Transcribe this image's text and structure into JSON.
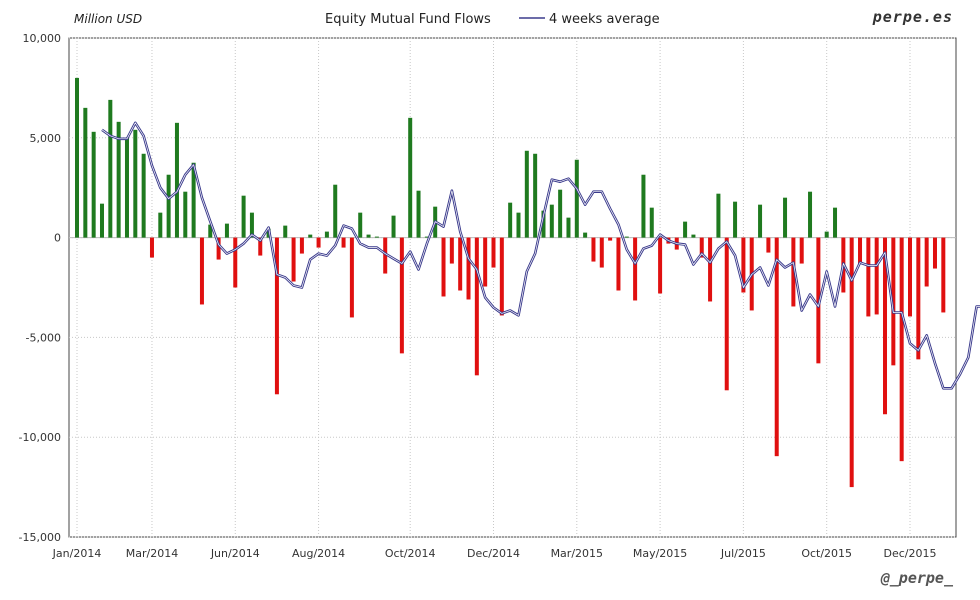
{
  "chart_data": {
    "type": "bar",
    "title": "Equity Mutual Fund Flows",
    "unit_label": "Million USD",
    "brand": "perpe.es",
    "handle": "@_perpe_",
    "ylim": [
      -15000,
      10000
    ],
    "y_ticks": [
      "10,000",
      "5,000",
      "0",
      "-5,000",
      "-10,000",
      "-15,000"
    ],
    "y_tick_values": [
      10000,
      5000,
      0,
      -5000,
      -10000,
      -15000
    ],
    "x_tick_labels": [
      "Jan/2014",
      "Mar/2014",
      "Jun/2014",
      "Aug/2014",
      "Oct/2014",
      "Dec/2014",
      "Mar/2015",
      "May/2015",
      "Jul/2015",
      "Oct/2015",
      "Dec/2015"
    ],
    "x_tick_weeks": [
      0,
      9,
      19,
      29,
      40,
      50,
      60,
      70,
      80,
      90,
      100
    ],
    "grid": true,
    "colors": {
      "positive": "#1f7a1f",
      "negative": "#e01010",
      "average_line": "#3a3a8c"
    },
    "series": [
      {
        "kind": "bar",
        "values": [
          8000,
          6500,
          5300,
          1700,
          6900,
          5800,
          5000,
          5400,
          4200,
          -1000,
          1250,
          3150,
          5750,
          2300,
          3750,
          -3350,
          650,
          -1100,
          700,
          -2500,
          2100,
          1250,
          -900,
          450,
          -7850,
          600,
          -2200,
          -800,
          150,
          -500,
          300,
          2650,
          -500,
          -4000,
          1250,
          150,
          50,
          -1800,
          1100,
          -5800,
          6000,
          2350,
          50,
          1550,
          -2950,
          -1300,
          -2650,
          -3100,
          -6900,
          -2450,
          -1500,
          -3900,
          1750,
          1250,
          4350,
          4200,
          1350,
          1650,
          2400,
          1000,
          3900,
          250,
          -1200,
          -1500,
          -150,
          -2650,
          50,
          -3150,
          3150,
          1500,
          -2800,
          -300,
          -600,
          800,
          150,
          -1000,
          -3200,
          2200,
          -7650,
          1800,
          -2750,
          -3650,
          1650,
          -750,
          -10950,
          2000,
          -3450,
          -1300,
          2300,
          -6300,
          300,
          1500,
          -2750,
          -12500,
          -1300,
          -3950,
          -3850,
          -8850,
          -6400,
          -11200,
          -3950,
          -6100,
          -2450,
          -1550,
          -3750
        ]
      },
      {
        "kind": "line",
        "name": "4 weeks average",
        "start_week": 3,
        "values": [
          5400,
          5100,
          4950,
          4950,
          5750,
          5100,
          3600,
          2500,
          1950,
          2300,
          3150,
          3650,
          2000,
          800,
          -350,
          -800,
          -600,
          -300,
          150,
          -150,
          500,
          -1850,
          -2000,
          -2400,
          -2500,
          -1100,
          -800,
          -900,
          -400,
          600,
          450,
          -300,
          -500,
          -500,
          -800,
          -1050,
          -1300,
          -700,
          -1600,
          -300,
          800,
          550,
          2350,
          300,
          -1050,
          -1600,
          -3000,
          -3500,
          -3800,
          -3650,
          -3900,
          -1700,
          -800,
          1100,
          2900,
          2800,
          2950,
          2450,
          1650,
          2300,
          2300,
          1450,
          650,
          -600,
          -1300,
          -550,
          -400,
          150,
          -150,
          -300,
          -350,
          -1350,
          -800,
          -1250,
          -550,
          -200,
          -900,
          -2500,
          -1850,
          -1500,
          -2400,
          -1100,
          -1500,
          -1250,
          -3650,
          -2850,
          -3450,
          -1700,
          -3450,
          -1300,
          -2150,
          -1250,
          -1400,
          -1400,
          -750,
          -3750,
          -3750,
          -5300,
          -5650,
          -4900,
          -6300,
          -7550,
          -7550,
          -6850,
          -6000,
          -3450,
          -3450
        ]
      }
    ]
  }
}
